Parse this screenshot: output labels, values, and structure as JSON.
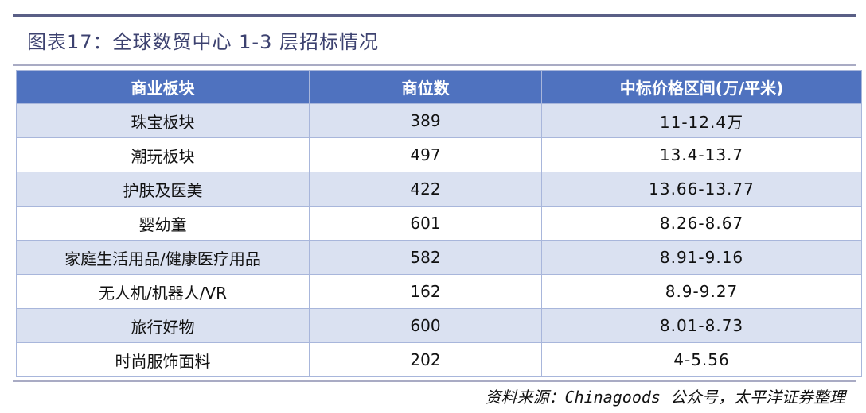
{
  "title": "图表17：全球数贸中心 1-3 层招标情况",
  "table": {
    "headers": [
      "商业板块",
      "商位数",
      "中标价格区间(万/平米)"
    ],
    "rows": [
      [
        "珠宝板块",
        "389",
        "11-12.4万"
      ],
      [
        "潮玩板块",
        "497",
        "13.4-13.7"
      ],
      [
        "护肤及医美",
        "422",
        "13.66-13.77"
      ],
      [
        "婴幼童",
        "601",
        "8.26-8.67"
      ],
      [
        "家庭生活用品/健康医疗用品",
        "582",
        "8.91-9.16"
      ],
      [
        "无人机/机器人/VR",
        "162",
        "8.9-9.27"
      ],
      [
        "旅行好物",
        "600",
        "8.01-8.73"
      ],
      [
        "时尚服饰面料",
        "202",
        "4-5.56"
      ]
    ]
  },
  "source": "资料来源：Chinagoods 公众号，太平洋证券整理",
  "colors": {
    "header_bg": "#4f72bf",
    "odd_row_bg": "#dae1f1",
    "title": "#3d4270"
  }
}
